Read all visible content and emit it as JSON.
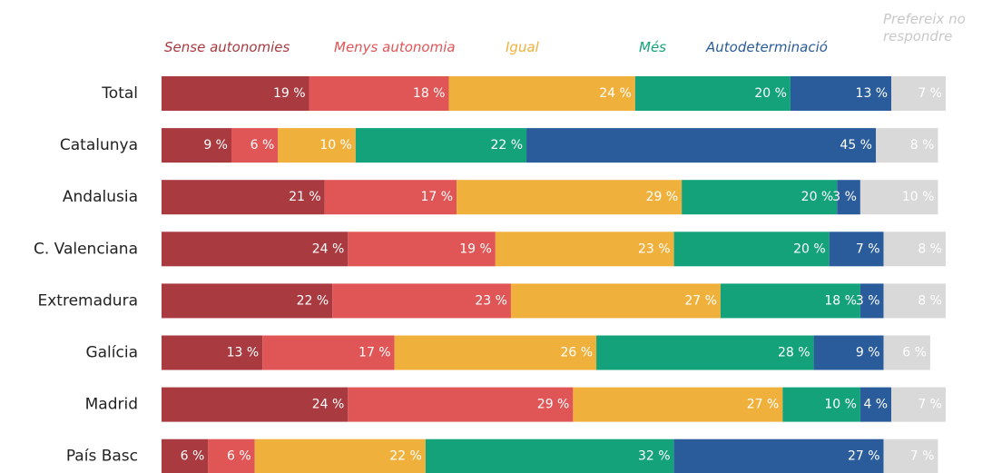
{
  "chart_data": {
    "type": "stacked-bar-horizontal",
    "categories": [
      "Total",
      "Catalunya",
      "Andalusia",
      "C. Valenciana",
      "Extremadura",
      "Galícia",
      "Madrid",
      "País Basc"
    ],
    "series": [
      {
        "name": "Sense autonomies",
        "color": "#a83a40",
        "values": [
          19,
          9,
          21,
          24,
          22,
          13,
          24,
          6
        ],
        "value_labels": [
          "19 %",
          "9 %",
          "21 %",
          "24 %",
          "22 %",
          "13 %",
          "24 %",
          "6 %"
        ]
      },
      {
        "name": "Menys autonomia",
        "color": "#e05556",
        "values": [
          18,
          6,
          17,
          19,
          23,
          17,
          29,
          6
        ],
        "value_labels": [
          "18 %",
          "6 %",
          "17 %",
          "19 %",
          "23 %",
          "17 %",
          "29 %",
          "6 %"
        ]
      },
      {
        "name": "Igual",
        "color": "#f0b13c",
        "values": [
          24,
          10,
          29,
          23,
          27,
          26,
          27,
          22
        ],
        "value_labels": [
          "24 %",
          "10 %",
          "29 %",
          "23 %",
          "27 %",
          "26 %",
          "27 %",
          "22 %"
        ]
      },
      {
        "name": "Més",
        "color": "#14a27b",
        "values": [
          20,
          22,
          20,
          20,
          18,
          28,
          10,
          32
        ],
        "value_labels": [
          "20 %",
          "22 %",
          "20 %",
          "20 %",
          "18 %",
          "28 %",
          "10 %",
          "32 %"
        ]
      },
      {
        "name": "Autodeterminació",
        "color": "#2a5c9b",
        "values": [
          13,
          45,
          3,
          7,
          3,
          9,
          4,
          27
        ],
        "value_labels": [
          "13 %",
          "45 %",
          "3 %",
          "7 %",
          "3 %",
          "9 %",
          "4 %",
          "27 %"
        ]
      },
      {
        "name": "Prefereix no respondre",
        "color": "#d9d9d9",
        "values": [
          7,
          8,
          10,
          8,
          8,
          6,
          7,
          7
        ],
        "value_labels": [
          "7 %",
          "8 %",
          "10 %",
          "8 %",
          "8 %",
          "6 %",
          "7 %",
          "7 %"
        ]
      }
    ]
  }
}
